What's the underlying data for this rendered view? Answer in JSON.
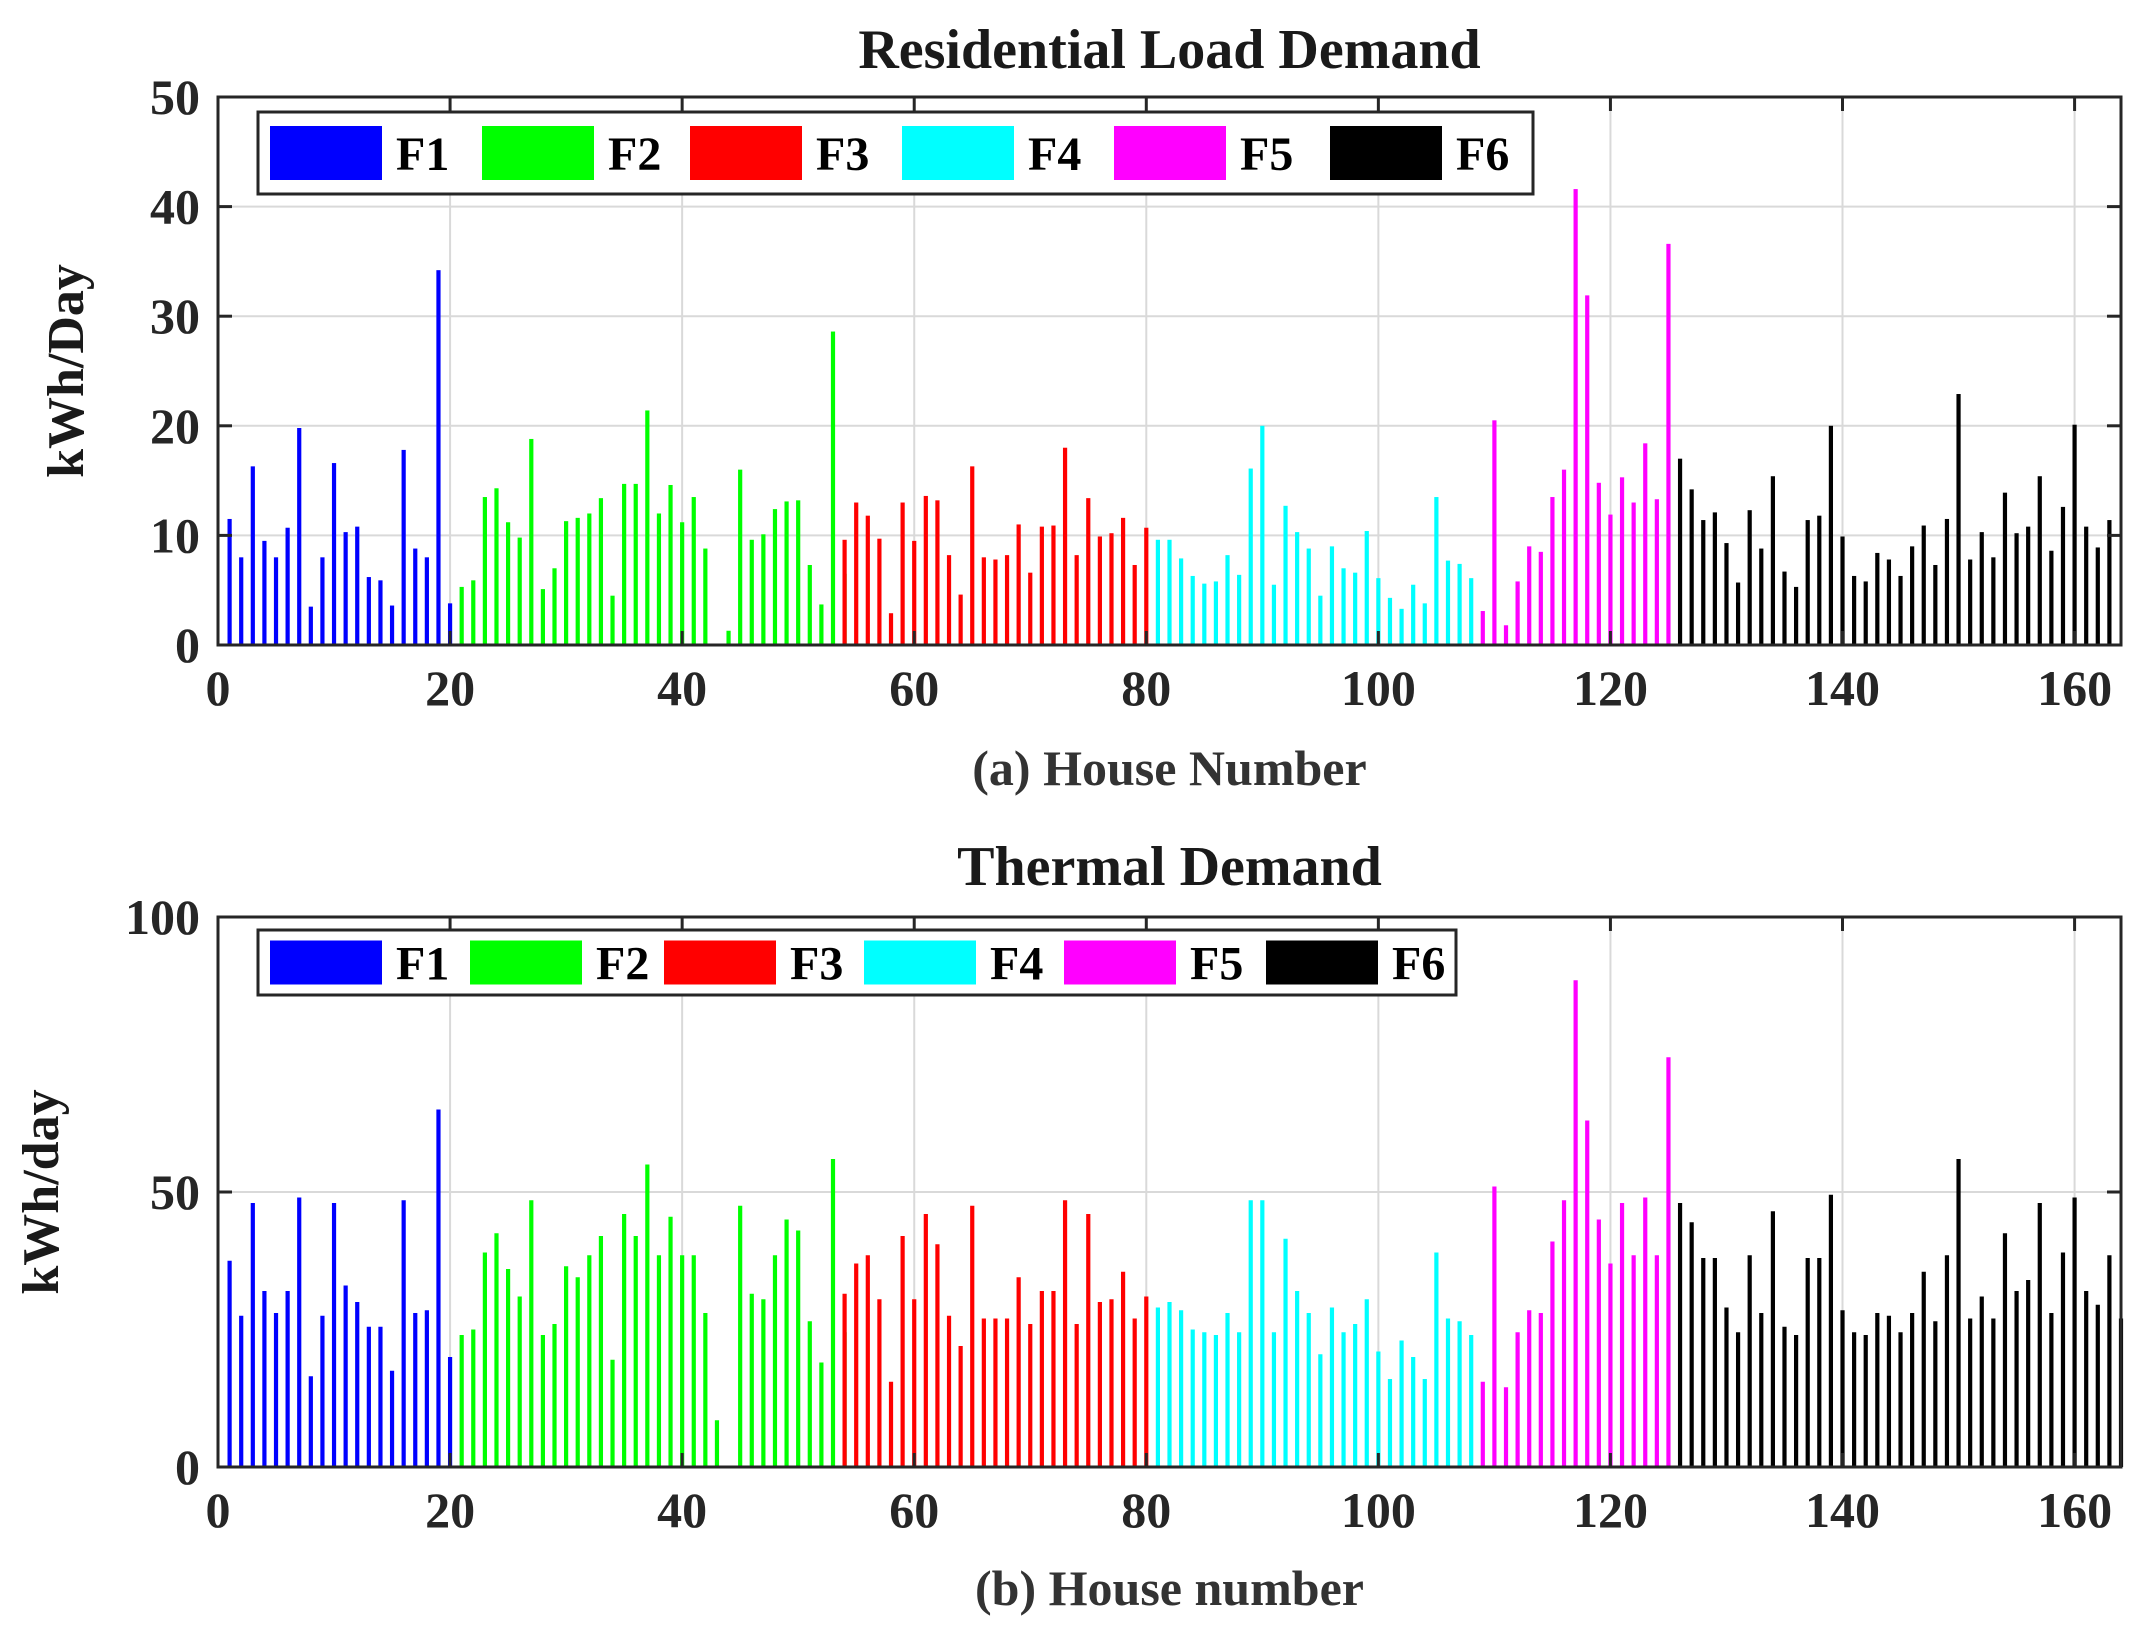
{
  "chart_data": [
    {
      "type": "bar",
      "title": "Residential Load Demand",
      "xlabel": "(a) House Number",
      "ylabel": "kWh/Day",
      "xlim": [
        0,
        164
      ],
      "ylim": [
        0,
        50
      ],
      "xticks": [
        "0",
        "20",
        "40",
        "60",
        "80",
        "100",
        "120",
        "140",
        "160"
      ],
      "yticks": [
        "0",
        "10",
        "20",
        "30",
        "40",
        "50"
      ],
      "grid": true,
      "legend_position": "top-left",
      "series": [
        {
          "name": "F1",
          "color": "#0000ff",
          "x_start": 1,
          "values": [
            11.5,
            8,
            16.3,
            9.5,
            8,
            10.7,
            19.8,
            3.5,
            8,
            16.6,
            10.3,
            10.8,
            6.2,
            5.9,
            3.6,
            17.8,
            8.8,
            8,
            34.2,
            3.8
          ]
        },
        {
          "name": "F2",
          "color": "#00ff00",
          "x_start": 21,
          "values": [
            5.3,
            5.9,
            13.5,
            14.3,
            11.2,
            9.8,
            18.8,
            5.1,
            7,
            11.3,
            11.6,
            12,
            13.4,
            4.5,
            14.7,
            14.7,
            21.4,
            12,
            14.6,
            11.2,
            13.5,
            8.8,
            null,
            1.3,
            16,
            9.6,
            10.1,
            12.4,
            13.1,
            13.2,
            7.3,
            3.7,
            28.6,
            6.5
          ]
        },
        {
          "name": "F3",
          "color": "#ff0000",
          "x_start": 54,
          "values": [
            9.6,
            13,
            11.8,
            9.7,
            2.9,
            13,
            9.5,
            13.6,
            13.2,
            8.2,
            4.6,
            16.3,
            8,
            7.8,
            8.2,
            11,
            6.6,
            10.8,
            10.9,
            18,
            8.2,
            13.4,
            9.9,
            10.2,
            11.6,
            7.3,
            10.7
          ]
        },
        {
          "name": "F4",
          "color": "#00ffff",
          "x_start": 81,
          "values": [
            9.6,
            9.6,
            7.9,
            6.3,
            5.6,
            5.8,
            8.2,
            6.4,
            16.1,
            20,
            5.5,
            12.7,
            10.3,
            8.8,
            4.5,
            9,
            7,
            6.6,
            10.4,
            6.1,
            4.3,
            3.3,
            5.5,
            3.8,
            13.5,
            7.7,
            7.4,
            6.1
          ]
        },
        {
          "name": "F5",
          "color": "#ff00ff",
          "x_start": 109,
          "values": [
            3.1,
            20.5,
            1.8,
            5.8,
            9,
            8.5,
            13.5,
            16,
            41.6,
            31.9,
            14.8,
            11.9,
            15.3,
            13,
            18.4,
            13.3,
            36.6
          ]
        },
        {
          "name": "F6",
          "color": "#000000",
          "x_start": 126,
          "values": [
            17,
            14.2,
            11.4,
            12.1,
            9.3,
            5.7,
            12.3,
            8.8,
            15.4,
            6.7,
            5.3,
            11.4,
            11.8,
            20,
            9.9,
            6.3,
            5.8,
            8.4,
            7.8,
            6.3,
            9,
            10.9,
            7.3,
            11.5,
            22.9,
            7.8,
            10.3,
            8,
            13.9,
            10.2,
            10.8,
            15.4,
            8.6,
            12.6,
            20.1,
            10.8,
            8.9,
            11.4
          ]
        }
      ]
    },
    {
      "type": "bar",
      "title": "Thermal Demand",
      "xlabel": "(b) House number",
      "ylabel": "kWh/day",
      "xlim": [
        0,
        164
      ],
      "ylim": [
        0,
        100
      ],
      "xticks": [
        "0",
        "20",
        "40",
        "60",
        "80",
        "100",
        "120",
        "140",
        "160"
      ],
      "yticks": [
        "0",
        "50",
        "100"
      ],
      "grid": true,
      "legend_position": "top-left",
      "series": [
        {
          "name": "F1",
          "color": "#0000ff",
          "x_start": 1,
          "values": [
            37.5,
            27.5,
            48,
            32,
            28,
            32,
            49,
            16.5,
            27.5,
            48,
            33,
            30,
            25.5,
            25.5,
            17.5,
            48.5,
            28,
            28.5,
            65,
            20
          ]
        },
        {
          "name": "F2",
          "color": "#00ff00",
          "x_start": 21,
          "values": [
            24,
            25,
            39,
            42.5,
            36,
            31,
            48.5,
            24,
            26,
            36.5,
            34.5,
            38.5,
            42,
            19.5,
            46,
            42,
            55,
            38.5,
            45.5,
            38.5,
            38.5,
            28,
            8.5,
            null,
            47.5,
            31.5,
            30.5,
            38.5,
            45,
            43,
            26.5,
            19,
            56,
            24.5
          ]
        },
        {
          "name": "F3",
          "color": "#ff0000",
          "x_start": 54,
          "values": [
            31.5,
            37,
            38.5,
            30.5,
            15.5,
            42,
            30.5,
            46,
            40.5,
            27.5,
            22,
            47.5,
            27,
            27,
            27,
            34.5,
            26,
            32,
            32,
            48.5,
            26,
            46,
            30,
            30.5,
            35.5,
            27,
            31
          ]
        },
        {
          "name": "F4",
          "color": "#00ffff",
          "x_start": 81,
          "values": [
            29,
            30,
            28.5,
            25,
            24.5,
            24,
            28,
            24.5,
            48.5,
            48.5,
            24.5,
            41.5,
            32,
            28,
            20.5,
            29,
            24.5,
            26,
            30.5,
            21,
            16,
            23,
            20,
            16,
            39,
            27,
            26.5,
            24
          ]
        },
        {
          "name": "F5",
          "color": "#ff00ff",
          "x_start": 109,
          "values": [
            15.5,
            51,
            14.5,
            24.5,
            28.5,
            28,
            41,
            48.5,
            88.5,
            63,
            45,
            37,
            48,
            38.5,
            49,
            38.5,
            74.5
          ]
        },
        {
          "name": "F6",
          "color": "#000000",
          "x_start": 126,
          "values": [
            48,
            44.5,
            38,
            38,
            29,
            24.5,
            38.5,
            28,
            46.5,
            25.5,
            24,
            38,
            38,
            49.5,
            28.5,
            24.5,
            24,
            28,
            27.5,
            24.5,
            28,
            35.5,
            26.5,
            38.5,
            56,
            27,
            31,
            27,
            42.5,
            32,
            34,
            48,
            28,
            39,
            49,
            32,
            29.5,
            38.5,
            27
          ]
        }
      ]
    }
  ]
}
